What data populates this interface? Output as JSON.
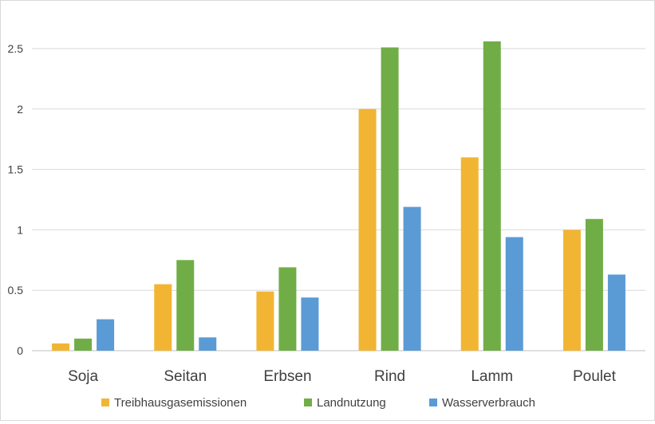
{
  "chart_data": {
    "type": "bar",
    "categories": [
      "Soja",
      "Seitan",
      "Erbsen",
      "Rind",
      "Lamm",
      "Poulet"
    ],
    "series": [
      {
        "name": "Treibhausgasemissionen",
        "color": "#F2B533",
        "values": [
          0.06,
          0.55,
          0.49,
          2.0,
          1.6,
          1.0
        ]
      },
      {
        "name": "Landnutzung",
        "color": "#70AD47",
        "values": [
          0.1,
          0.75,
          0.69,
          2.51,
          2.56,
          1.09
        ]
      },
      {
        "name": "Wasserverbrauch",
        "color": "#5B9BD5",
        "values": [
          0.26,
          0.11,
          0.44,
          1.19,
          0.94,
          0.63
        ]
      }
    ],
    "yticks": [
      "0",
      "0.5",
      "1",
      "1.5",
      "2",
      "2.5"
    ],
    "ylim": [
      0,
      2.75
    ],
    "grid": true,
    "legend": "bottom"
  }
}
